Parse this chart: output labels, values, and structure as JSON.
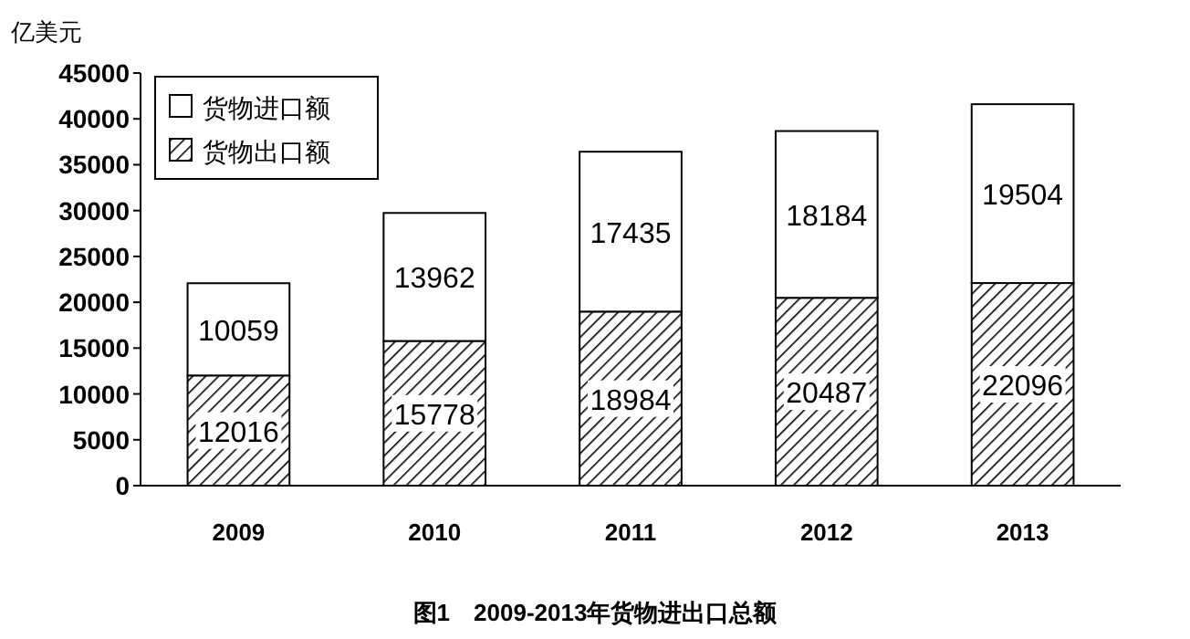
{
  "chart_data": {
    "type": "bar",
    "stacked": true,
    "title": "图1　2009-2013年货物进出口总额",
    "ylabel": "亿美元",
    "categories": [
      "2009",
      "2010",
      "2011",
      "2012",
      "2013"
    ],
    "series": [
      {
        "name": "货物出口额",
        "color": "#000000",
        "values": [
          12016,
          15778,
          18984,
          20487,
          22096
        ]
      },
      {
        "name": "货物进口额",
        "color": "#ffffff",
        "values": [
          10059,
          13962,
          17435,
          18184,
          19504
        ]
      }
    ],
    "ylim": [
      0,
      45000
    ],
    "yticks": [
      0,
      5000,
      10000,
      15000,
      20000,
      25000,
      30000,
      35000,
      40000,
      45000
    ],
    "data_labels": true,
    "legend": "top left"
  }
}
